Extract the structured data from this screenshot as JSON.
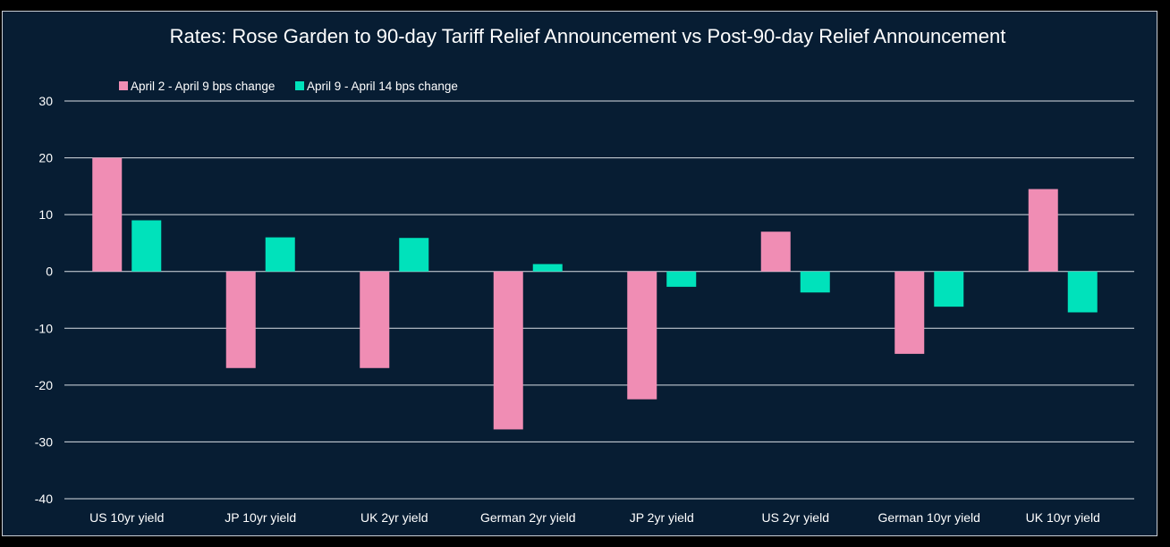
{
  "chart_data": {
    "type": "bar",
    "title": "Rates: Rose Garden to 90-day Tariff Relief Announcement vs Post-90-day Relief Announcement",
    "xlabel": "",
    "ylabel": "",
    "ylim": [
      -40,
      30
    ],
    "yticks": [
      30,
      20,
      10,
      0,
      -10,
      -20,
      -30,
      -40
    ],
    "grid": true,
    "legend_position": "top-left",
    "categories": [
      "US 10yr yield",
      "JP 10yr yield",
      "UK 2yr yield",
      "German 2yr yield",
      "JP 2yr yield",
      "US 2yr yield",
      "German 10yr yield",
      "UK 10yr yield"
    ],
    "series": [
      {
        "name": "April 2 - April 9 bps change",
        "color": "#f08db4",
        "values": [
          20,
          -17,
          -17,
          -27.8,
          -22.5,
          7,
          -14.5,
          14.5
        ]
      },
      {
        "name": "April 9 - April 14 bps change",
        "color": "#00e2bb",
        "values": [
          9,
          6,
          5.9,
          1.3,
          -2.7,
          -3.7,
          -6.2,
          -7.2
        ]
      }
    ]
  }
}
